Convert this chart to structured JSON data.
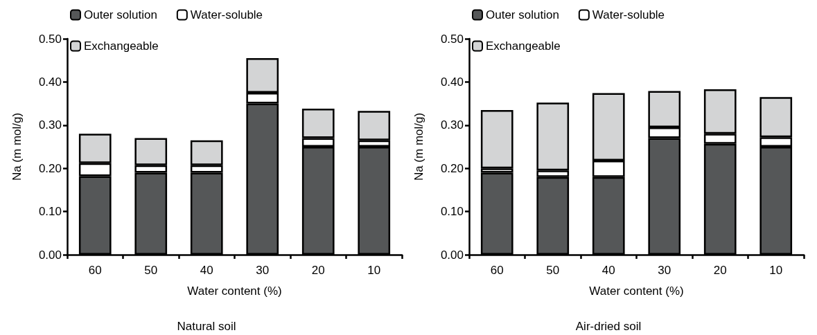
{
  "chart_data": [
    {
      "type": "bar",
      "stacked": true,
      "xlabel": "Water content (%)",
      "ylabel": "Na (m mol/g)",
      "annotations": [
        "Natural soil"
      ],
      "categories": [
        "60",
        "50",
        "40",
        "30",
        "20",
        "10"
      ],
      "ylim": [
        0,
        0.5
      ],
      "yticks": [
        {
          "value": 0,
          "label": "0.00"
        },
        {
          "value": 0.1,
          "label": "0.10"
        },
        {
          "value": 0.2,
          "label": "0.20"
        },
        {
          "value": 0.3,
          "label": "0.30"
        },
        {
          "value": 0.4,
          "label": "0.40"
        },
        {
          "value": 0.5,
          "label": "0.50"
        }
      ],
      "grid": false,
      "legend": "top left",
      "series": [
        {
          "name": "Outer solution",
          "color": "#555758",
          "values": [
            0.182,
            0.19,
            0.19,
            0.35,
            0.25,
            0.25
          ]
        },
        {
          "name": "Water-soluble",
          "color": "#ffffff",
          "values": [
            0.03,
            0.017,
            0.017,
            0.025,
            0.02,
            0.015
          ]
        },
        {
          "name": "Exchangeable",
          "color": "#d3d4d5",
          "values": [
            0.068,
            0.063,
            0.058,
            0.08,
            0.068,
            0.068
          ]
        }
      ]
    },
    {
      "type": "bar",
      "stacked": true,
      "xlabel": "Water content (%)",
      "ylabel": "Na (m mol/g)",
      "annotations": [
        "Air-dried soil"
      ],
      "categories": [
        "60",
        "50",
        "40",
        "30",
        "20",
        "10"
      ],
      "ylim": [
        0,
        0.5
      ],
      "yticks": [
        {
          "value": 0,
          "label": "0.00"
        },
        {
          "value": 0.1,
          "label": "0.10"
        },
        {
          "value": 0.2,
          "label": "0.20"
        },
        {
          "value": 0.3,
          "label": "0.30"
        },
        {
          "value": 0.4,
          "label": "0.40"
        },
        {
          "value": 0.5,
          "label": "0.50"
        }
      ],
      "grid": false,
      "legend": "top left",
      "series": [
        {
          "name": "Outer solution",
          "color": "#555758",
          "values": [
            0.19,
            0.18,
            0.18,
            0.27,
            0.257,
            0.25
          ]
        },
        {
          "name": "Water-soluble",
          "color": "#ffffff",
          "values": [
            0.01,
            0.015,
            0.038,
            0.025,
            0.023,
            0.022
          ]
        },
        {
          "name": "Exchangeable",
          "color": "#d3d4d5",
          "values": [
            0.135,
            0.157,
            0.156,
            0.084,
            0.103,
            0.093
          ]
        }
      ]
    }
  ]
}
